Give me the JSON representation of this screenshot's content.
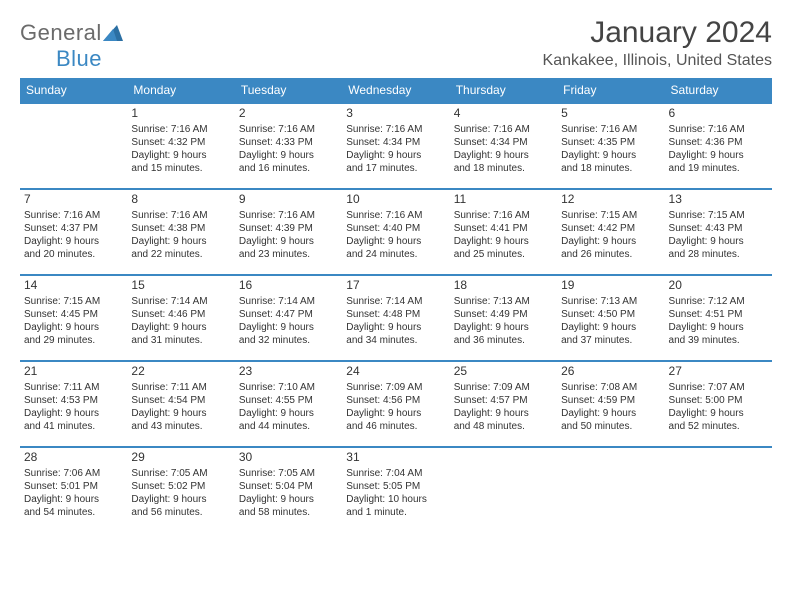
{
  "brand": {
    "part1": "General",
    "part2": "Blue"
  },
  "title": "January 2024",
  "location": "Kankakee, Illinois, United States",
  "colors": {
    "header_bg": "#3b88c3",
    "header_text": "#ffffff",
    "row_border": "#3b88c3",
    "text": "#333333",
    "logo_gray": "#6b6b6b",
    "logo_blue": "#3b88c3"
  },
  "days_of_week": [
    "Sunday",
    "Monday",
    "Tuesday",
    "Wednesday",
    "Thursday",
    "Friday",
    "Saturday"
  ],
  "weeks": [
    [
      null,
      {
        "n": "1",
        "sr": "Sunrise: 7:16 AM",
        "ss": "Sunset: 4:32 PM",
        "d1": "Daylight: 9 hours",
        "d2": "and 15 minutes."
      },
      {
        "n": "2",
        "sr": "Sunrise: 7:16 AM",
        "ss": "Sunset: 4:33 PM",
        "d1": "Daylight: 9 hours",
        "d2": "and 16 minutes."
      },
      {
        "n": "3",
        "sr": "Sunrise: 7:16 AM",
        "ss": "Sunset: 4:34 PM",
        "d1": "Daylight: 9 hours",
        "d2": "and 17 minutes."
      },
      {
        "n": "4",
        "sr": "Sunrise: 7:16 AM",
        "ss": "Sunset: 4:34 PM",
        "d1": "Daylight: 9 hours",
        "d2": "and 18 minutes."
      },
      {
        "n": "5",
        "sr": "Sunrise: 7:16 AM",
        "ss": "Sunset: 4:35 PM",
        "d1": "Daylight: 9 hours",
        "d2": "and 18 minutes."
      },
      {
        "n": "6",
        "sr": "Sunrise: 7:16 AM",
        "ss": "Sunset: 4:36 PM",
        "d1": "Daylight: 9 hours",
        "d2": "and 19 minutes."
      }
    ],
    [
      {
        "n": "7",
        "sr": "Sunrise: 7:16 AM",
        "ss": "Sunset: 4:37 PM",
        "d1": "Daylight: 9 hours",
        "d2": "and 20 minutes."
      },
      {
        "n": "8",
        "sr": "Sunrise: 7:16 AM",
        "ss": "Sunset: 4:38 PM",
        "d1": "Daylight: 9 hours",
        "d2": "and 22 minutes."
      },
      {
        "n": "9",
        "sr": "Sunrise: 7:16 AM",
        "ss": "Sunset: 4:39 PM",
        "d1": "Daylight: 9 hours",
        "d2": "and 23 minutes."
      },
      {
        "n": "10",
        "sr": "Sunrise: 7:16 AM",
        "ss": "Sunset: 4:40 PM",
        "d1": "Daylight: 9 hours",
        "d2": "and 24 minutes."
      },
      {
        "n": "11",
        "sr": "Sunrise: 7:16 AM",
        "ss": "Sunset: 4:41 PM",
        "d1": "Daylight: 9 hours",
        "d2": "and 25 minutes."
      },
      {
        "n": "12",
        "sr": "Sunrise: 7:15 AM",
        "ss": "Sunset: 4:42 PM",
        "d1": "Daylight: 9 hours",
        "d2": "and 26 minutes."
      },
      {
        "n": "13",
        "sr": "Sunrise: 7:15 AM",
        "ss": "Sunset: 4:43 PM",
        "d1": "Daylight: 9 hours",
        "d2": "and 28 minutes."
      }
    ],
    [
      {
        "n": "14",
        "sr": "Sunrise: 7:15 AM",
        "ss": "Sunset: 4:45 PM",
        "d1": "Daylight: 9 hours",
        "d2": "and 29 minutes."
      },
      {
        "n": "15",
        "sr": "Sunrise: 7:14 AM",
        "ss": "Sunset: 4:46 PM",
        "d1": "Daylight: 9 hours",
        "d2": "and 31 minutes."
      },
      {
        "n": "16",
        "sr": "Sunrise: 7:14 AM",
        "ss": "Sunset: 4:47 PM",
        "d1": "Daylight: 9 hours",
        "d2": "and 32 minutes."
      },
      {
        "n": "17",
        "sr": "Sunrise: 7:14 AM",
        "ss": "Sunset: 4:48 PM",
        "d1": "Daylight: 9 hours",
        "d2": "and 34 minutes."
      },
      {
        "n": "18",
        "sr": "Sunrise: 7:13 AM",
        "ss": "Sunset: 4:49 PM",
        "d1": "Daylight: 9 hours",
        "d2": "and 36 minutes."
      },
      {
        "n": "19",
        "sr": "Sunrise: 7:13 AM",
        "ss": "Sunset: 4:50 PM",
        "d1": "Daylight: 9 hours",
        "d2": "and 37 minutes."
      },
      {
        "n": "20",
        "sr": "Sunrise: 7:12 AM",
        "ss": "Sunset: 4:51 PM",
        "d1": "Daylight: 9 hours",
        "d2": "and 39 minutes."
      }
    ],
    [
      {
        "n": "21",
        "sr": "Sunrise: 7:11 AM",
        "ss": "Sunset: 4:53 PM",
        "d1": "Daylight: 9 hours",
        "d2": "and 41 minutes."
      },
      {
        "n": "22",
        "sr": "Sunrise: 7:11 AM",
        "ss": "Sunset: 4:54 PM",
        "d1": "Daylight: 9 hours",
        "d2": "and 43 minutes."
      },
      {
        "n": "23",
        "sr": "Sunrise: 7:10 AM",
        "ss": "Sunset: 4:55 PM",
        "d1": "Daylight: 9 hours",
        "d2": "and 44 minutes."
      },
      {
        "n": "24",
        "sr": "Sunrise: 7:09 AM",
        "ss": "Sunset: 4:56 PM",
        "d1": "Daylight: 9 hours",
        "d2": "and 46 minutes."
      },
      {
        "n": "25",
        "sr": "Sunrise: 7:09 AM",
        "ss": "Sunset: 4:57 PM",
        "d1": "Daylight: 9 hours",
        "d2": "and 48 minutes."
      },
      {
        "n": "26",
        "sr": "Sunrise: 7:08 AM",
        "ss": "Sunset: 4:59 PM",
        "d1": "Daylight: 9 hours",
        "d2": "and 50 minutes."
      },
      {
        "n": "27",
        "sr": "Sunrise: 7:07 AM",
        "ss": "Sunset: 5:00 PM",
        "d1": "Daylight: 9 hours",
        "d2": "and 52 minutes."
      }
    ],
    [
      {
        "n": "28",
        "sr": "Sunrise: 7:06 AM",
        "ss": "Sunset: 5:01 PM",
        "d1": "Daylight: 9 hours",
        "d2": "and 54 minutes."
      },
      {
        "n": "29",
        "sr": "Sunrise: 7:05 AM",
        "ss": "Sunset: 5:02 PM",
        "d1": "Daylight: 9 hours",
        "d2": "and 56 minutes."
      },
      {
        "n": "30",
        "sr": "Sunrise: 7:05 AM",
        "ss": "Sunset: 5:04 PM",
        "d1": "Daylight: 9 hours",
        "d2": "and 58 minutes."
      },
      {
        "n": "31",
        "sr": "Sunrise: 7:04 AM",
        "ss": "Sunset: 5:05 PM",
        "d1": "Daylight: 10 hours",
        "d2": "and 1 minute."
      },
      null,
      null,
      null
    ]
  ]
}
